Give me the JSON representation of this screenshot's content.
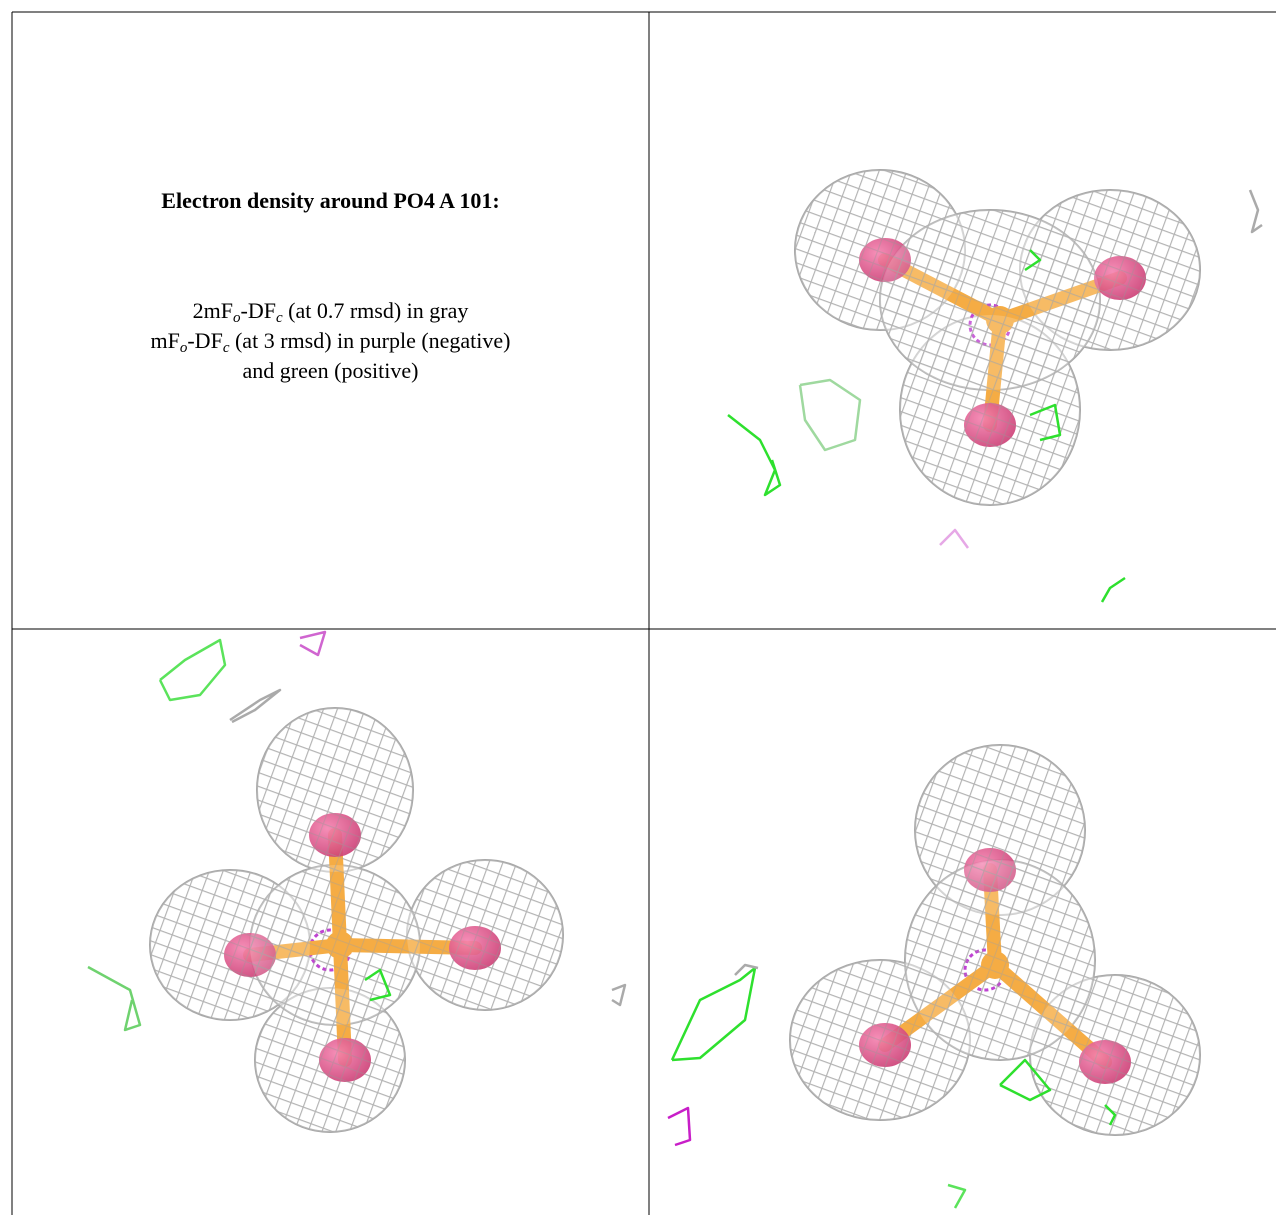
{
  "figure": {
    "title": "Electron density around PO4 A 101:",
    "caption_lines": [
      [
        "2mF",
        "o",
        "-DF",
        "c",
        " (at 0.7 rmsd) in gray"
      ],
      [
        "mF",
        "o",
        "-DF",
        "c",
        " (at 3 rmsd) in purple (negative)"
      ],
      [
        "and green (positive)"
      ]
    ]
  }
}
